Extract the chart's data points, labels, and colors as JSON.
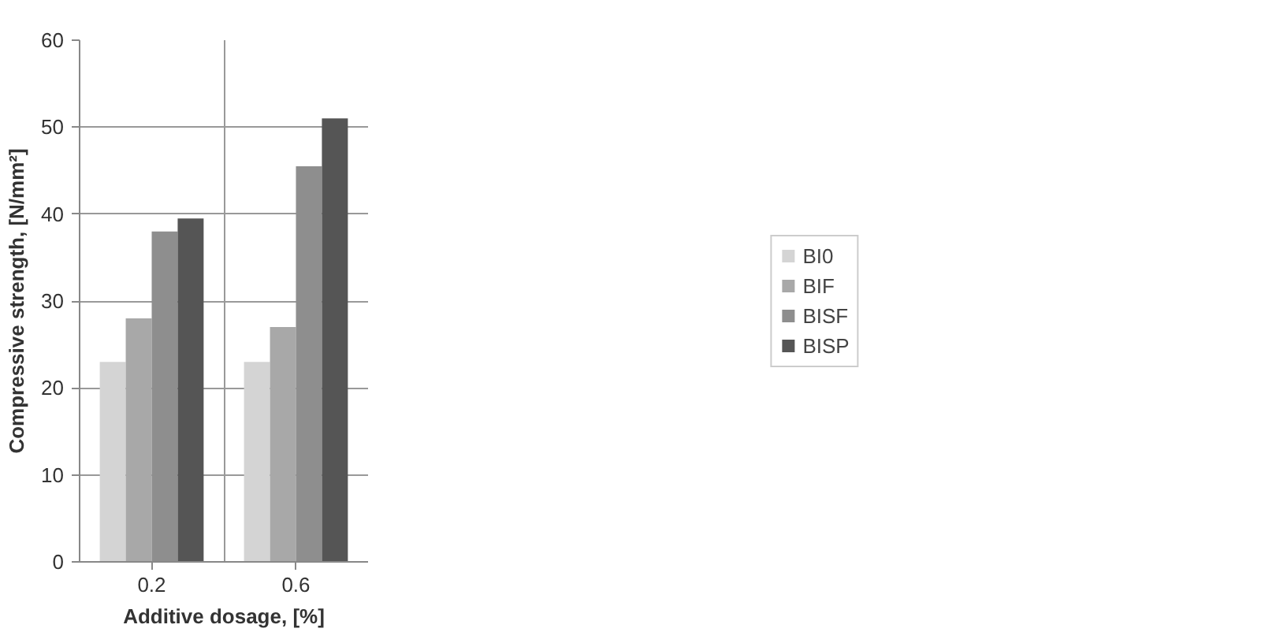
{
  "chart_data": {
    "type": "bar",
    "xlabel": "Additive dosage, [%]",
    "ylabel": "Compressive strength, [N/mm²]",
    "categories": [
      "0.2",
      "0.6"
    ],
    "series": [
      {
        "name": "BI0",
        "color": "#d4d4d4",
        "values": [
          23,
          23
        ]
      },
      {
        "name": "BIF",
        "color": "#a8a8a8",
        "values": [
          28,
          27
        ]
      },
      {
        "name": "BISF",
        "color": "#8e8e8e",
        "values": [
          38,
          45.5
        ]
      },
      {
        "name": "BISP",
        "color": "#555555",
        "values": [
          39.5,
          51
        ]
      }
    ],
    "ylim": [
      0,
      60
    ],
    "yticks": [
      0,
      10,
      20,
      30,
      40,
      50,
      60
    ],
    "grid": true,
    "legend": "right"
  }
}
